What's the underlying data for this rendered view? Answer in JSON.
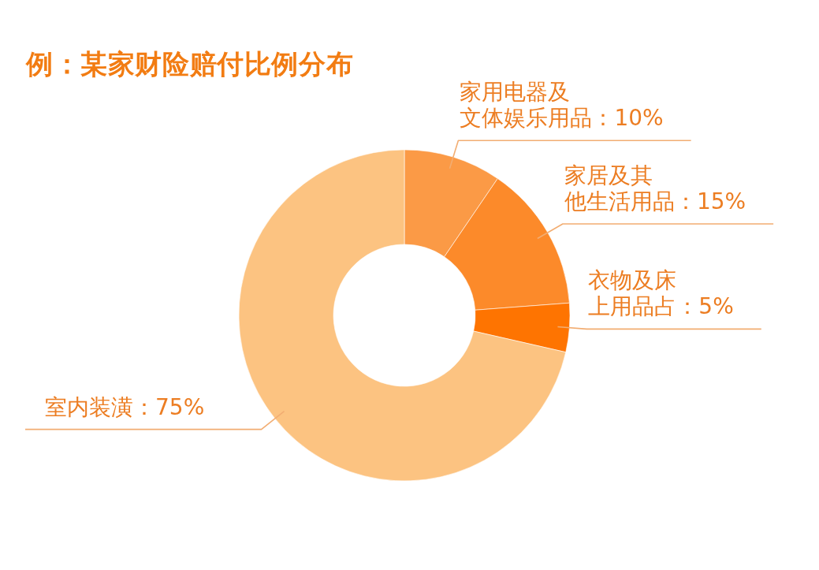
{
  "chart_data": {
    "type": "donut",
    "title": "例：某家财险赔付比例分布",
    "categories": [
      "家用电器及文体娱乐用品",
      "家居及其他生活用品",
      "衣物及床上用品占",
      "室内装潢"
    ],
    "values": [
      10,
      15,
      5,
      75
    ],
    "value_labels": [
      "10%",
      "15%",
      "5%",
      "75%"
    ],
    "colors": [
      "#fb9a46",
      "#fc8a2a",
      "#fe7401",
      "#fcc381"
    ]
  }
}
